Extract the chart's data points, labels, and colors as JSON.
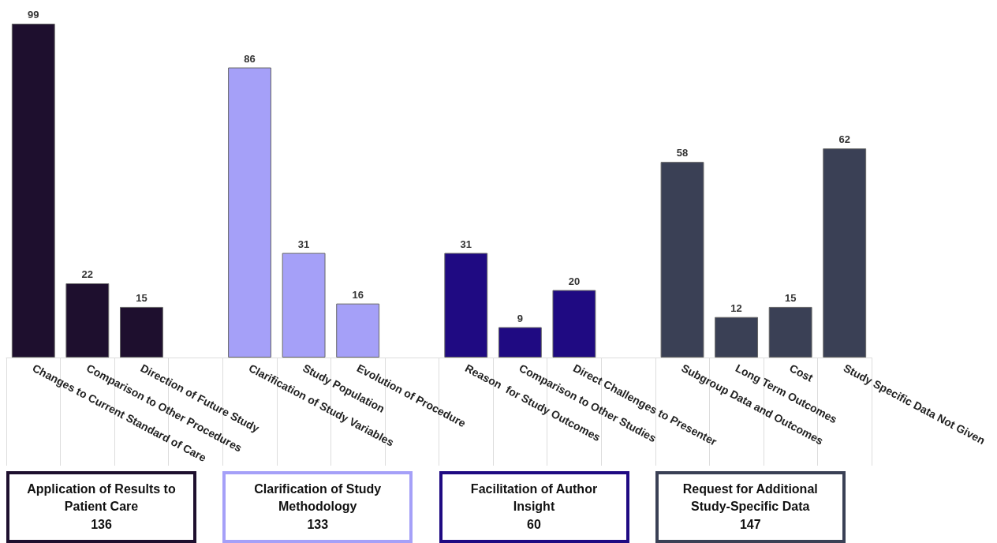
{
  "chart_data": {
    "type": "bar",
    "categories": [
      "Changes to Current Standard of Care",
      "Comparison to Other Procedures",
      "Direction of Future Study",
      null,
      "Clarification of Study Variables",
      "Study Population",
      "Evolution of Procedure",
      null,
      "Reason  for Study Outcomes",
      "Comparison to Other Studies",
      "Direct Challenges to Presenter",
      null,
      "Subgroup Data and Outcomes",
      "Long Term Outcomes",
      "Cost",
      "Study Specific Data Not Given"
    ],
    "values": [
      99,
      22,
      15,
      null,
      86,
      31,
      16,
      null,
      31,
      9,
      20,
      null,
      58,
      12,
      15,
      62
    ],
    "colors": [
      "#1e0f2e",
      "#1e0f2e",
      "#1e0f2e",
      null,
      "#a5a0f8",
      "#a5a0f8",
      "#a5a0f8",
      null,
      "#1f0a82",
      "#1f0a82",
      "#1f0a82",
      null,
      "#3a4055",
      "#3a4055",
      "#3a4055",
      "#3a4055"
    ],
    "data_labels": true,
    "tick_labels": "x",
    "annotations": [
      "Application of Results to Patient Care\n136",
      "Clarification of Study Methodology\n133",
      "Facilitation of Author Insight\n60",
      "Request for Additional Study-Specific Data\n147"
    ]
  }
}
